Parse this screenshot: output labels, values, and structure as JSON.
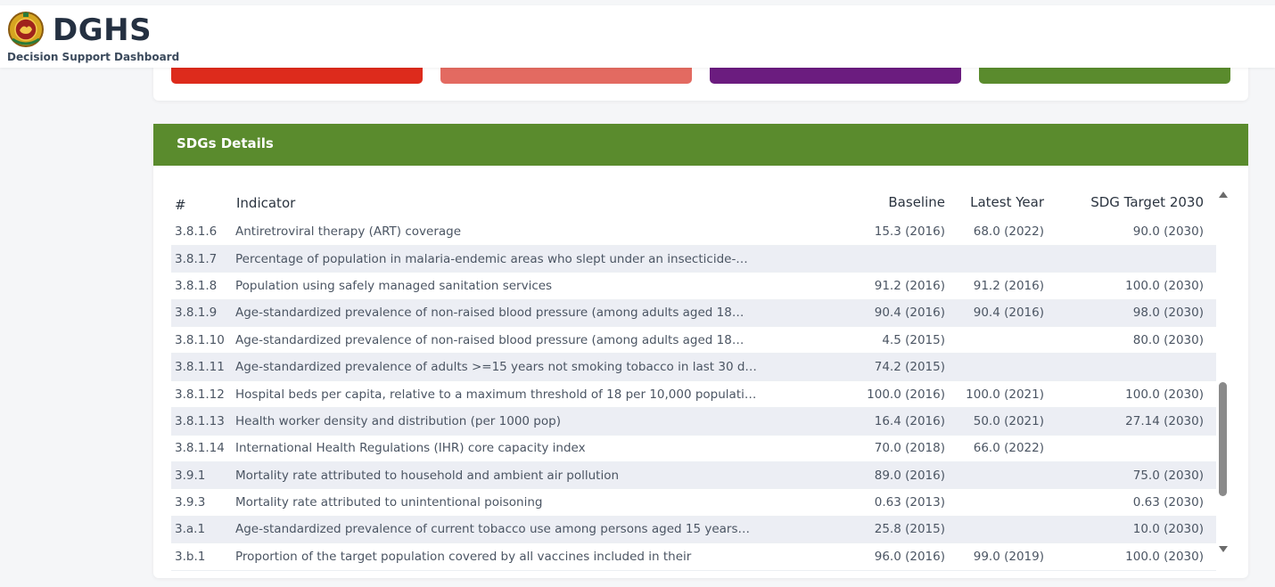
{
  "header": {
    "title": "DGHS",
    "subtitle": "Decision Support Dashboard"
  },
  "summary_cards": [
    {
      "color": "#dd2b1c"
    },
    {
      "color": "#e36a61"
    },
    {
      "color": "#6b1c7f"
    },
    {
      "color": "#5a8b2d"
    }
  ],
  "sdg": {
    "title": "SDGs Details",
    "columns": {
      "num": "#",
      "indicator": "Indicator",
      "baseline": "Baseline",
      "latest": "Latest Year",
      "target": "SDG Target 2030"
    },
    "rows": [
      {
        "id": "3.8.1.6",
        "indicator": "Antiretroviral therapy (ART) coverage",
        "baseline": "15.3 (2016)",
        "latest": "68.0 (2022)",
        "target": "90.0 (2030)"
      },
      {
        "id": "3.8.1.7",
        "indicator": "Percentage of population in malaria-endemic areas who slept under an insecticide-…",
        "baseline": "",
        "latest": "",
        "target": ""
      },
      {
        "id": "3.8.1.8",
        "indicator": "Population using safely managed sanitation services",
        "baseline": "91.2 (2016)",
        "latest": "91.2 (2016)",
        "target": "100.0 (2030)"
      },
      {
        "id": "3.8.1.9",
        "indicator": "Age-standardized prevalence of non-raised blood pressure (among adults aged 18…",
        "baseline": "90.4 (2016)",
        "latest": "90.4 (2016)",
        "target": "98.0 (2030)"
      },
      {
        "id": "3.8.1.10",
        "indicator": "Age-standardized prevalence of non-raised blood pressure (among adults aged 18…",
        "baseline": "4.5 (2015)",
        "latest": "",
        "target": "80.0 (2030)"
      },
      {
        "id": "3.8.1.11",
        "indicator": "Age-standardized prevalence of adults >=15 years not smoking tobacco in last 30 d…",
        "baseline": "74.2 (2015)",
        "latest": "",
        "target": ""
      },
      {
        "id": "3.8.1.12",
        "indicator": "Hospital beds per capita, relative to a maximum threshold of 18 per 10,000 populati…",
        "baseline": "100.0 (2016)",
        "latest": "100.0 (2021)",
        "target": "100.0 (2030)"
      },
      {
        "id": "3.8.1.13",
        "indicator": "Health worker density and distribution (per 1000 pop)",
        "baseline": "16.4 (2016)",
        "latest": "50.0 (2021)",
        "target": "27.14 (2030)"
      },
      {
        "id": "3.8.1.14",
        "indicator": "International Health Regulations (IHR) core capacity index",
        "baseline": "70.0 (2018)",
        "latest": "66.0 (2022)",
        "target": ""
      },
      {
        "id": "3.9.1",
        "indicator": "Mortality rate attributed to household and ambient air pollution",
        "baseline": "89.0 (2016)",
        "latest": "",
        "target": "75.0 (2030)"
      },
      {
        "id": "3.9.3",
        "indicator": "Mortality rate attributed to unintentional poisoning",
        "baseline": "0.63 (2013)",
        "latest": "",
        "target": "0.63 (2030)"
      },
      {
        "id": "3.a.1",
        "indicator": "Age-standardized prevalence of current tobacco use among persons aged 15 years…",
        "baseline": "25.8 (2015)",
        "latest": "",
        "target": "10.0 (2030)"
      },
      {
        "id": "3.b.1",
        "indicator": "Proportion of the target population covered by all vaccines included in their",
        "baseline": "96.0 (2016)",
        "latest": "99.0 (2019)",
        "target": "100.0 (2030)"
      }
    ]
  }
}
